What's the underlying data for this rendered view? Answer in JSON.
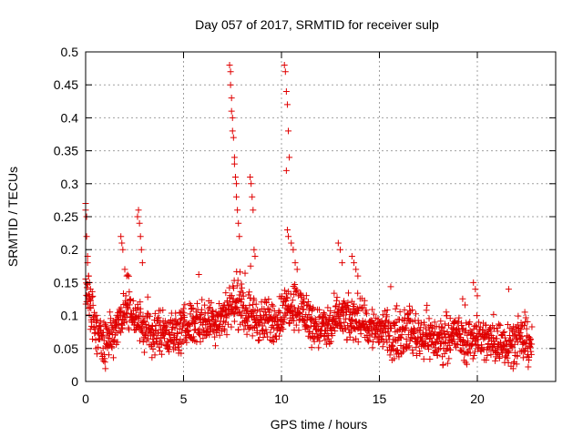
{
  "chart_data": {
    "type": "scatter",
    "title": "Day 057 of 2017, SRMTID for receiver sulp",
    "xlabel": "GPS time / hours",
    "ylabel": "SRMTID / TECUs",
    "xlim": [
      0,
      24
    ],
    "ylim": [
      0,
      0.5
    ],
    "xticks": [
      0,
      5,
      10,
      15,
      20
    ],
    "xtick_labels": [
      "0",
      "5",
      "10",
      "15",
      "20"
    ],
    "yticks": [
      0,
      0.05,
      0.1,
      0.15,
      0.2,
      0.25,
      0.3,
      0.35,
      0.4,
      0.45,
      0.5
    ],
    "ytick_labels": [
      "0",
      "0.05",
      "0.1",
      "0.15",
      "0.2",
      "0.25",
      "0.3",
      "0.35",
      "0.4",
      "0.45",
      "0.5"
    ],
    "grid": true,
    "marker": "plus",
    "series": [
      {
        "name": "SRMTID",
        "color": "#e00000",
        "baseline_profile": [
          [
            0.0,
            0.14
          ],
          [
            0.3,
            0.1
          ],
          [
            0.6,
            0.07
          ],
          [
            1.0,
            0.06
          ],
          [
            1.5,
            0.08
          ],
          [
            2.0,
            0.11
          ],
          [
            2.5,
            0.1
          ],
          [
            3.0,
            0.08
          ],
          [
            3.5,
            0.07
          ],
          [
            4.0,
            0.08
          ],
          [
            4.5,
            0.07
          ],
          [
            5.0,
            0.08
          ],
          [
            5.5,
            0.09
          ],
          [
            6.0,
            0.09
          ],
          [
            6.5,
            0.09
          ],
          [
            7.0,
            0.1
          ],
          [
            7.5,
            0.12
          ],
          [
            8.0,
            0.11
          ],
          [
            8.5,
            0.1
          ],
          [
            9.0,
            0.09
          ],
          [
            9.5,
            0.09
          ],
          [
            10.0,
            0.1
          ],
          [
            10.5,
            0.12
          ],
          [
            11.0,
            0.11
          ],
          [
            11.5,
            0.09
          ],
          [
            12.0,
            0.08
          ],
          [
            12.5,
            0.08
          ],
          [
            13.0,
            0.1
          ],
          [
            13.5,
            0.09
          ],
          [
            14.0,
            0.1
          ],
          [
            14.5,
            0.08
          ],
          [
            15.0,
            0.08
          ],
          [
            15.5,
            0.07
          ],
          [
            16.0,
            0.07
          ],
          [
            16.5,
            0.08
          ],
          [
            17.0,
            0.07
          ],
          [
            17.5,
            0.07
          ],
          [
            18.0,
            0.06
          ],
          [
            18.5,
            0.07
          ],
          [
            19.0,
            0.07
          ],
          [
            19.5,
            0.06
          ],
          [
            20.0,
            0.07
          ],
          [
            20.5,
            0.06
          ],
          [
            21.0,
            0.06
          ],
          [
            21.5,
            0.06
          ],
          [
            22.0,
            0.06
          ],
          [
            22.5,
            0.06
          ],
          [
            22.8,
            0.06
          ]
        ],
        "spread": 0.035,
        "x_end": 22.8,
        "peaks": [
          {
            "x": [
              0.0,
              0.0,
              0.05,
              0.05,
              0.1,
              0.1,
              0.15,
              0.2,
              0.25
            ],
            "y": [
              0.27,
              0.26,
              0.25,
              0.22,
              0.19,
              0.18,
              0.16,
              0.15,
              0.14
            ]
          },
          {
            "x": [
              1.8,
              1.85,
              1.9,
              2.0,
              2.1
            ],
            "y": [
              0.22,
              0.21,
              0.2,
              0.17,
              0.16
            ]
          },
          {
            "x": [
              2.65,
              2.7,
              2.75,
              2.8,
              2.85,
              2.9
            ],
            "y": [
              0.25,
              0.26,
              0.24,
              0.22,
              0.2,
              0.18
            ]
          },
          {
            "x": [
              7.35,
              7.4,
              7.45,
              7.5,
              7.55,
              7.6,
              7.65,
              7.7,
              7.75,
              7.8,
              7.85
            ],
            "y": [
              0.48,
              0.47,
              0.43,
              0.4,
              0.37,
              0.34,
              0.31,
              0.28,
              0.26,
              0.24,
              0.22
            ]
          },
          {
            "x": [
              7.4,
              7.45,
              7.5,
              7.6,
              7.7
            ],
            "y": [
              0.45,
              0.41,
              0.38,
              0.33,
              0.3
            ]
          },
          {
            "x": [
              8.4,
              8.45,
              8.5,
              8.55
            ],
            "y": [
              0.31,
              0.3,
              0.28,
              0.26
            ]
          },
          {
            "x": [
              8.6,
              8.65
            ],
            "y": [
              0.2,
              0.19
            ]
          },
          {
            "x": [
              10.15,
              10.2,
              10.25,
              10.3,
              10.35,
              10.4
            ],
            "y": [
              0.48,
              0.47,
              0.44,
              0.42,
              0.38,
              0.34
            ]
          },
          {
            "x": [
              10.25,
              10.3,
              10.35
            ],
            "y": [
              0.32,
              0.23,
              0.22
            ]
          },
          {
            "x": [
              10.5,
              10.6,
              10.7,
              10.8
            ],
            "y": [
              0.21,
              0.2,
              0.18,
              0.17
            ]
          },
          {
            "x": [
              12.9,
              13.0,
              13.1
            ],
            "y": [
              0.21,
              0.2,
              0.18
            ]
          },
          {
            "x": [
              13.6,
              13.7,
              13.8,
              13.9
            ],
            "y": [
              0.19,
              0.18,
              0.17,
              0.16
            ]
          },
          {
            "x": [
              19.8,
              19.9,
              20.0
            ],
            "y": [
              0.15,
              0.14,
              0.13
            ]
          },
          {
            "x": [
              21.6
            ],
            "y": [
              0.14
            ]
          }
        ]
      }
    ]
  }
}
